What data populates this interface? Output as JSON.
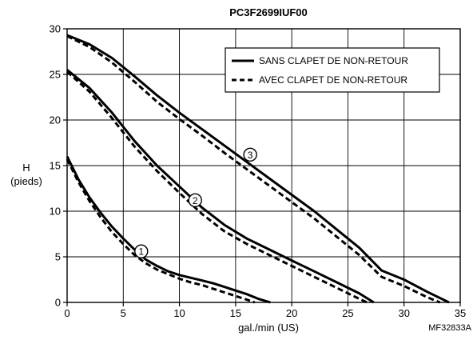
{
  "chart_data": {
    "type": "line",
    "title": "PC3F2699IUF00",
    "xlabel": "gal./min (US)",
    "ylabel_line1": "H",
    "ylabel_line2": "(pieds)",
    "figure_code": "MF32833A",
    "xlim": [
      0,
      35
    ],
    "ylim": [
      0,
      30
    ],
    "xticks": [
      0,
      5,
      10,
      15,
      20,
      25,
      30,
      35
    ],
    "yticks": [
      0,
      5,
      10,
      15,
      20,
      25,
      30
    ],
    "grid": true,
    "legend_position": "top-right",
    "legend": [
      {
        "label": "SANS CLAPET DE NON-RETOUR",
        "style": "solid"
      },
      {
        "label": "AVEC CLAPET DE NON-RETOUR",
        "style": "dashed"
      }
    ],
    "series": [
      {
        "curve": "1",
        "style": "solid",
        "points": [
          [
            0,
            16
          ],
          [
            1,
            13.5
          ],
          [
            2,
            11.5
          ],
          [
            3,
            9.8
          ],
          [
            4,
            8.3
          ],
          [
            5,
            7
          ],
          [
            6,
            5.8
          ],
          [
            7,
            4.7
          ],
          [
            8,
            4
          ],
          [
            9,
            3.4
          ],
          [
            10,
            3
          ],
          [
            11,
            2.7
          ],
          [
            12,
            2.4
          ],
          [
            13,
            2.1
          ],
          [
            14,
            1.7
          ],
          [
            15,
            1.3
          ],
          [
            16,
            0.9
          ],
          [
            17,
            0.4
          ],
          [
            18.1,
            0
          ]
        ]
      },
      {
        "curve": "1",
        "style": "dashed",
        "points": [
          [
            0,
            15.7
          ],
          [
            1,
            13.2
          ],
          [
            2,
            11.1
          ],
          [
            3,
            9.3
          ],
          [
            4,
            7.7
          ],
          [
            5,
            6.4
          ],
          [
            6,
            5.2
          ],
          [
            7,
            4.3
          ],
          [
            8,
            3.6
          ],
          [
            9,
            3.1
          ],
          [
            10,
            2.6
          ],
          [
            11,
            2.2
          ],
          [
            12,
            1.9
          ],
          [
            13,
            1.5
          ],
          [
            14,
            1.1
          ],
          [
            15,
            0.7
          ],
          [
            16,
            0.3
          ],
          [
            16.7,
            0
          ]
        ]
      },
      {
        "curve": "2",
        "style": "solid",
        "points": [
          [
            0,
            25.5
          ],
          [
            2,
            23.5
          ],
          [
            4,
            20.8
          ],
          [
            6,
            17.7
          ],
          [
            8,
            15
          ],
          [
            10,
            12.7
          ],
          [
            12,
            10.4
          ],
          [
            14,
            8.5
          ],
          [
            16,
            7
          ],
          [
            18,
            5.8
          ],
          [
            20,
            4.6
          ],
          [
            22,
            3.4
          ],
          [
            24,
            2.2
          ],
          [
            26,
            1
          ],
          [
            27.3,
            0
          ]
        ]
      },
      {
        "curve": "2",
        "style": "dashed",
        "points": [
          [
            0,
            25.3
          ],
          [
            2,
            23.1
          ],
          [
            4,
            20.2
          ],
          [
            6,
            17.1
          ],
          [
            8,
            14.4
          ],
          [
            10,
            12
          ],
          [
            12,
            9.7
          ],
          [
            14,
            7.8
          ],
          [
            16,
            6.4
          ],
          [
            18,
            5.2
          ],
          [
            20,
            4
          ],
          [
            22,
            2.8
          ],
          [
            24,
            1.6
          ],
          [
            26,
            0.4
          ],
          [
            26.7,
            0
          ]
        ]
      },
      {
        "curve": "3",
        "style": "solid",
        "points": [
          [
            0,
            29.3
          ],
          [
            2,
            28.3
          ],
          [
            4,
            26.8
          ],
          [
            6,
            24.8
          ],
          [
            8,
            22.7
          ],
          [
            10,
            20.8
          ],
          [
            12,
            19
          ],
          [
            14,
            17.2
          ],
          [
            16,
            15.4
          ],
          [
            18,
            13.6
          ],
          [
            20,
            11.8
          ],
          [
            22,
            10
          ],
          [
            24,
            8
          ],
          [
            26,
            6
          ],
          [
            28,
            3.5
          ],
          [
            30,
            2.5
          ],
          [
            32,
            1.2
          ],
          [
            34,
            0
          ]
        ]
      },
      {
        "curve": "3",
        "style": "dashed",
        "points": [
          [
            0,
            29.2
          ],
          [
            2,
            28
          ],
          [
            4,
            26.3
          ],
          [
            6,
            24.2
          ],
          [
            8,
            22
          ],
          [
            10,
            20.1
          ],
          [
            12,
            18.3
          ],
          [
            14,
            16.4
          ],
          [
            16,
            14.6
          ],
          [
            18,
            12.8
          ],
          [
            20,
            11
          ],
          [
            22,
            9.2
          ],
          [
            24,
            7.2
          ],
          [
            26,
            5.2
          ],
          [
            28,
            2.8
          ],
          [
            30,
            1.8
          ],
          [
            32,
            0.6
          ],
          [
            33.2,
            0
          ]
        ]
      }
    ],
    "curve_markers": [
      {
        "label": "1",
        "x": 6.6,
        "y": 5.6
      },
      {
        "label": "2",
        "x": 11.4,
        "y": 11.2
      },
      {
        "label": "3",
        "x": 16.3,
        "y": 16.2
      }
    ]
  }
}
